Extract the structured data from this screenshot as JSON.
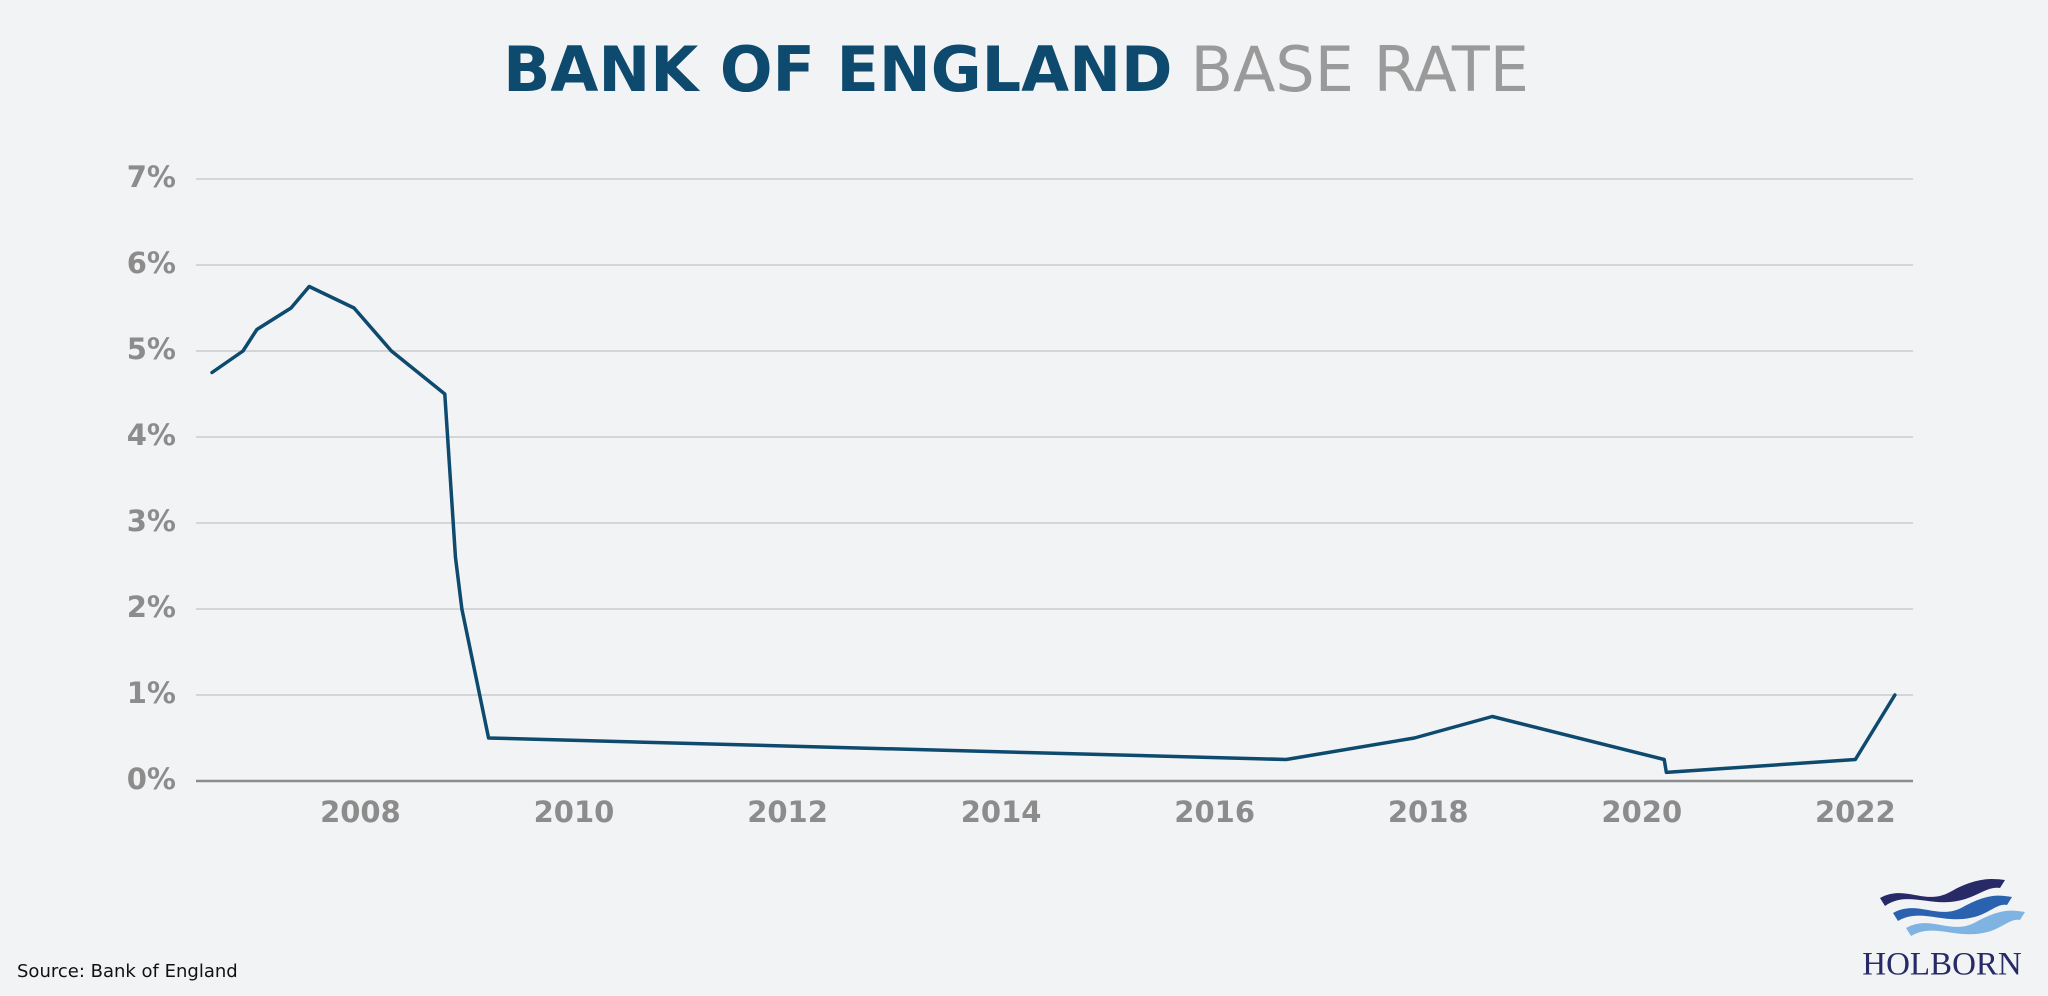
{
  "chart_data": {
    "type": "line",
    "title": [
      "BANK OF ENGLAND",
      "BASE RATE"
    ],
    "x": [
      2006.61,
      2006.9,
      2007.03,
      2007.35,
      2007.52,
      2007.94,
      2008.29,
      2008.79,
      2008.89,
      2008.95,
      2009.2,
      2016.67,
      2017.87,
      2018.6,
      2020.21,
      2020.23,
      2022.0,
      2022.37
    ],
    "values": [
      4.75,
      5.0,
      5.25,
      5.5,
      5.75,
      5.5,
      5.0,
      4.5,
      2.6,
      2.0,
      0.5,
      0.25,
      0.5,
      0.75,
      0.25,
      0.1,
      0.25,
      1.0
    ],
    "color": "#0d4a6e",
    "xlim": [
      2006.46,
      2022.54
    ],
    "xticks": [
      2008,
      2010,
      2012,
      2014,
      2016,
      2018,
      2020,
      2022
    ],
    "ylim": [
      0,
      7
    ],
    "yticks": [
      {
        "value": 0,
        "label": "0%"
      },
      {
        "value": 1,
        "label": "1%"
      },
      {
        "value": 2,
        "label": "2%"
      },
      {
        "value": 3,
        "label": "3%"
      },
      {
        "value": 4,
        "label": "4%"
      },
      {
        "value": 5,
        "label": "5%"
      },
      {
        "value": 6,
        "label": "6%"
      },
      {
        "value": 7,
        "label": "7%"
      }
    ],
    "grid": true,
    "source": "Source: Bank of England",
    "brand": "HOLBORN"
  }
}
